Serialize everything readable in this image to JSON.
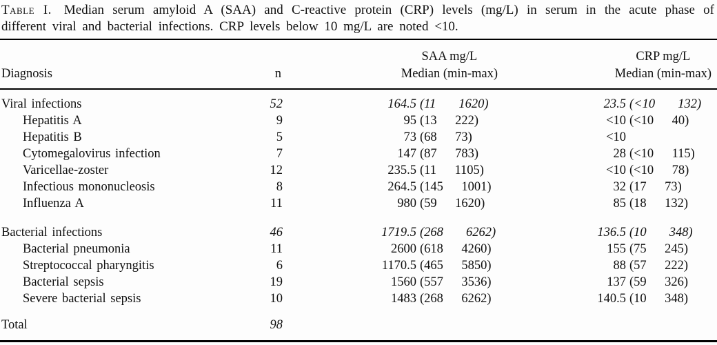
{
  "colors": {
    "background": "#fdfdfd",
    "text": "#101010",
    "rule": "#000000"
  },
  "caption": {
    "label": "Table I.",
    "text": "Median serum amyloid A (SAA) and C-reactive protein (CRP) levels (mg/L) in serum in the acute phase of different viral and bacterial infections. CRP levels below 10 mg/L are noted <10."
  },
  "table": {
    "headers": {
      "diagnosis": "Diagnosis",
      "n": "n",
      "saa_line1": "SAA mg/L",
      "saa_line2": "Median (min-max)",
      "crp_line1": "CRP mg/L",
      "crp_line2": "Median (min-max)"
    },
    "rows": [
      {
        "diagnosis": "Viral infections",
        "n": "52",
        "saa_median": "164.5",
        "saa_range": "(11     1620)",
        "crp_median": "23.5",
        "crp_range": "(<10     132)"
      },
      {
        "diagnosis": "Hepatitis A",
        "n": "9",
        "saa_median": "95",
        "saa_range": "(13    222)",
        "crp_median": "<10",
        "crp_range": "(<10    40)"
      },
      {
        "diagnosis": "Hepatitis B",
        "n": "5",
        "saa_median": "73",
        "saa_range": "(68    73)",
        "crp_median": "<10",
        "crp_range": ""
      },
      {
        "diagnosis": "Cytomegalovirus infection",
        "n": "7",
        "saa_median": "147",
        "saa_range": "(87    783)",
        "crp_median": "28",
        "crp_range": "(<10    115)"
      },
      {
        "diagnosis": "Varicellae-zoster",
        "n": "12",
        "saa_median": "235.5",
        "saa_range": "(11    1105)",
        "crp_median": "<10",
        "crp_range": "(<10    78)"
      },
      {
        "diagnosis": "Infectious mononucleosis",
        "n": "8",
        "saa_median": "264.5",
        "saa_range": "(145    1001)",
        "crp_median": "32",
        "crp_range": "(17    73)"
      },
      {
        "diagnosis": "Influenza A",
        "n": "11",
        "saa_median": "980",
        "saa_range": "(59    1620)",
        "crp_median": "85",
        "crp_range": "(18    132)"
      },
      {
        "diagnosis": "Bacterial infections",
        "n": "46",
        "saa_median": "1719.5",
        "saa_range": "(268     6262)",
        "crp_median": "136.5",
        "crp_range": "(10     348)"
      },
      {
        "diagnosis": "Bacterial pneumonia",
        "n": "11",
        "saa_median": "2600",
        "saa_range": "(618    4260)",
        "crp_median": "155",
        "crp_range": "(75    245)"
      },
      {
        "diagnosis": "Streptococcal pharyngitis",
        "n": "6",
        "saa_median": "1170.5",
        "saa_range": "(465    5850)",
        "crp_median": "88",
        "crp_range": "(57    222)"
      },
      {
        "diagnosis": "Bacterial sepsis",
        "n": "19",
        "saa_median": "1560",
        "saa_range": "(557    3536)",
        "crp_median": "137",
        "crp_range": "(59    326)"
      },
      {
        "diagnosis": "Severe bacterial sepsis",
        "n": "10",
        "saa_median": "1483",
        "saa_range": "(268    6262)",
        "crp_median": "140.5",
        "crp_range": "(10    348)"
      },
      {
        "diagnosis": "Total",
        "n": "98",
        "saa_median": "",
        "saa_range": "",
        "crp_median": "",
        "crp_range": ""
      }
    ]
  }
}
